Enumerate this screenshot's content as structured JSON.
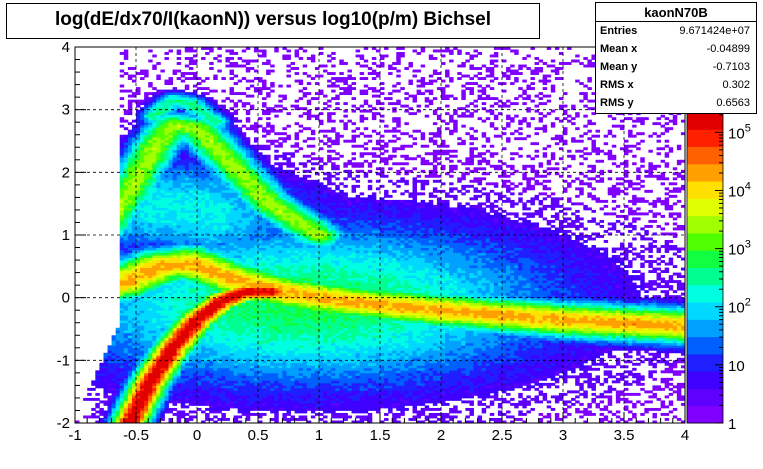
{
  "chart_data": {
    "type": "heatmap",
    "title": "log(dE/dx70/I(kaonN)) versus log10(p/m) Bichsel",
    "xlabel": "",
    "ylabel": "",
    "xlim": [
      -1,
      4
    ],
    "ylim": [
      -2,
      4
    ],
    "x_ticks": [
      "-1",
      "-0.5",
      "0",
      "0.5",
      "1",
      "1.5",
      "2",
      "2.5",
      "3",
      "3.5",
      "4"
    ],
    "y_ticks": [
      "-2",
      "-1",
      "0",
      "1",
      "2",
      "3",
      "4"
    ],
    "grid": true,
    "z_scale": "log",
    "z_ticks": [
      {
        "label": "1",
        "exp": ""
      },
      {
        "label": "10",
        "exp": ""
      },
      {
        "label": "10",
        "exp": "2"
      },
      {
        "label": "10",
        "exp": "3"
      },
      {
        "label": "10",
        "exp": "4"
      },
      {
        "label": "10",
        "exp": "5"
      }
    ],
    "palette": [
      "#7f00ff",
      "#5f00ff",
      "#3f00ff",
      "#1f1fff",
      "#0060ff",
      "#00a0ff",
      "#00d8ff",
      "#00ffe0",
      "#00ff90",
      "#10ff40",
      "#50ff00",
      "#a0ff00",
      "#e0ff00",
      "#ffe000",
      "#ffa000",
      "#ff6000",
      "#ff2000",
      "#e00000"
    ],
    "bands": [
      {
        "name": "kaon band",
        "points": [
          [
            -0.55,
            -2.0
          ],
          [
            -0.4,
            -1.4
          ],
          [
            -0.2,
            -0.8
          ],
          [
            0.0,
            -0.35
          ],
          [
            0.2,
            -0.05
          ],
          [
            0.4,
            0.1
          ],
          [
            0.6,
            0.1
          ]
        ],
        "width": 0.12,
        "peak": 5.0
      },
      {
        "name": "pion band",
        "points": [
          [
            -0.9,
            0.1
          ],
          [
            -0.6,
            0.25
          ],
          [
            -0.3,
            0.5
          ],
          [
            -0.05,
            0.55
          ],
          [
            0.3,
            0.3
          ],
          [
            0.7,
            0.1
          ],
          [
            1.2,
            -0.05
          ],
          [
            2.0,
            -0.2
          ],
          [
            3.0,
            -0.35
          ],
          [
            4.0,
            -0.45
          ]
        ],
        "width": 0.22,
        "peak": 4.0
      },
      {
        "name": "proton band",
        "points": [
          [
            -0.75,
            1.1
          ],
          [
            -0.55,
            1.7
          ],
          [
            -0.35,
            2.4
          ],
          [
            -0.2,
            2.75
          ],
          [
            0.0,
            2.7
          ],
          [
            0.3,
            2.1
          ],
          [
            0.6,
            1.5
          ],
          [
            1.0,
            1.0
          ]
        ],
        "width": 0.16,
        "peak": 3.2
      },
      {
        "name": "deuteron band",
        "points": [
          [
            -0.35,
            2.9
          ],
          [
            -0.2,
            3.15
          ],
          [
            -0.05,
            3.1
          ],
          [
            0.15,
            2.8
          ]
        ],
        "width": 0.1,
        "peak": 2.4
      }
    ],
    "stats": {
      "name": "kaonN70B",
      "rows": [
        {
          "label": "Entries",
          "value": "9.671424e+07"
        },
        {
          "label": "Mean x",
          "value": "-0.04899"
        },
        {
          "label": "Mean y",
          "value": "-0.7103"
        },
        {
          "label": "RMS x",
          "value": "0.302"
        },
        {
          "label": "RMS y",
          "value": "0.6563"
        }
      ]
    }
  }
}
